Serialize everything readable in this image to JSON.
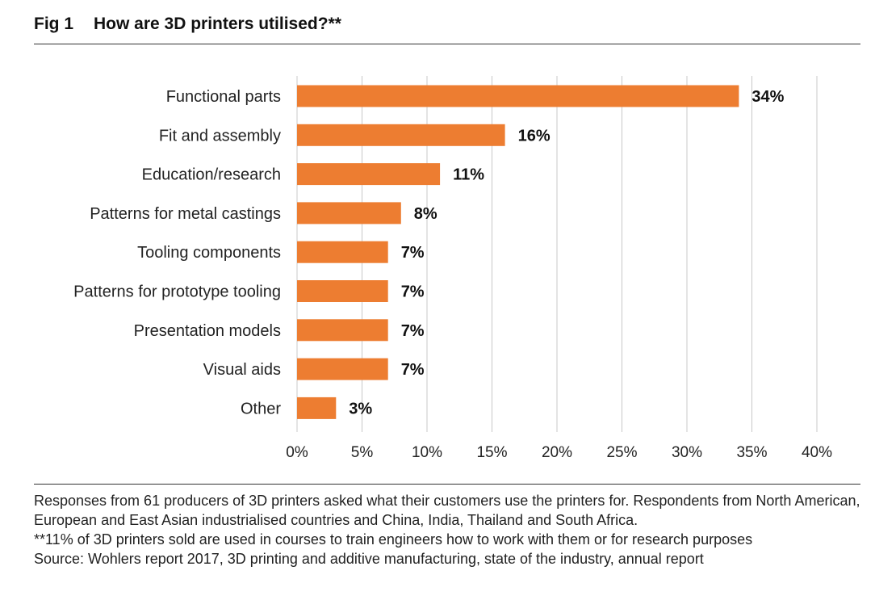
{
  "figure": {
    "number": "Fig 1",
    "title": "How are 3D printers utilised?**"
  },
  "chart_data": {
    "type": "bar",
    "orientation": "horizontal",
    "categories": [
      "Functional parts",
      "Fit and assembly",
      "Education/research",
      "Patterns for metal castings",
      "Tooling components",
      "Patterns for prototype tooling",
      "Presentation models",
      "Visual aids",
      "Other"
    ],
    "values": [
      34,
      16,
      11,
      8,
      7,
      7,
      7,
      7,
      3
    ],
    "value_labels": [
      "34%",
      "16%",
      "11%",
      "8%",
      "7%",
      "7%",
      "7%",
      "7%",
      "3%"
    ],
    "xlim": [
      0,
      40
    ],
    "xticks": [
      0,
      5,
      10,
      15,
      20,
      25,
      30,
      35,
      40
    ],
    "xtick_labels": [
      "0%",
      "5%",
      "10%",
      "15%",
      "20%",
      "25%",
      "30%",
      "35%",
      "40%"
    ],
    "bar_color": "#ED7D31",
    "grid": "vertical"
  },
  "footer": {
    "note1": "Responses from 61 producers of 3D printers asked what their customers use the printers for. Respondents from North American, European and East Asian industrialised countries and China, India, Thailand and South Africa.",
    "note2": "**11% of 3D printers sold are used in courses to train engineers how to work with them or for research purposes",
    "source": "Source: Wohlers report 2017, 3D printing and additive manufacturing, state of the industry, annual report"
  }
}
